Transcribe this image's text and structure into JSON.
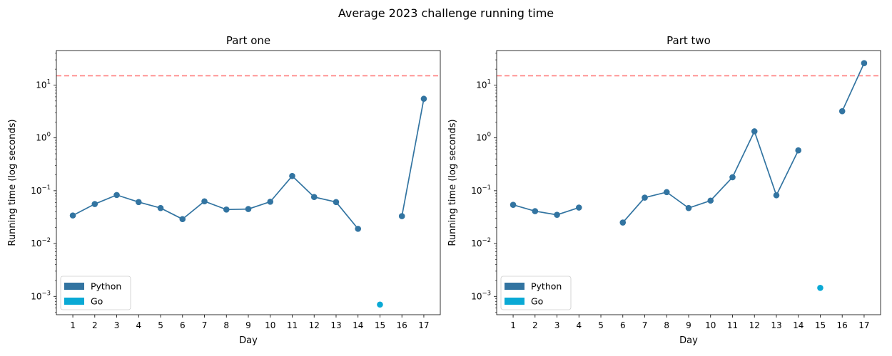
{
  "figure": {
    "title": "Average 2023 challenge running time"
  },
  "colors": {
    "python": "#3274a1",
    "go": "#0aa9d5",
    "threshold": "#ff7f7f"
  },
  "chart_data": [
    {
      "type": "line",
      "title": "Part one",
      "xlabel": "Day",
      "ylabel": "Running time (log seconds)",
      "yscale": "log",
      "ylim": [
        0.00045,
        45
      ],
      "x": [
        1,
        2,
        3,
        4,
        5,
        6,
        7,
        8,
        9,
        10,
        11,
        12,
        13,
        14,
        15,
        16,
        17
      ],
      "x_tick_labels": [
        "1",
        "2",
        "3",
        "4",
        "5",
        "6",
        "7",
        "8",
        "9",
        "10",
        "11",
        "12",
        "13",
        "14",
        "15",
        "16",
        "17"
      ],
      "y_ticks": [
        0.001,
        0.01,
        0.1,
        1,
        10
      ],
      "y_tick_labels": [
        {
          "base": "10",
          "exp": "−3"
        },
        {
          "base": "10",
          "exp": "−2"
        },
        {
          "base": "10",
          "exp": "−1"
        },
        {
          "base": "10",
          "exp": "0"
        },
        {
          "base": "10",
          "exp": "1"
        }
      ],
      "threshold": 15,
      "series": [
        {
          "name": "Python",
          "color": "#3274a1",
          "connect": true,
          "values": [
            0.034,
            0.056,
            0.083,
            0.061,
            0.047,
            0.029,
            0.063,
            0.044,
            0.045,
            0.062,
            0.19,
            0.076,
            0.061,
            0.019,
            null,
            0.033,
            5.5
          ]
        },
        {
          "name": "Go",
          "color": "#0aa9d5",
          "connect": false,
          "values": [
            null,
            null,
            null,
            null,
            null,
            null,
            null,
            null,
            null,
            null,
            null,
            null,
            null,
            null,
            0.0007,
            null,
            null
          ]
        }
      ],
      "legend": {
        "position": "lower-left",
        "entries": [
          "Python",
          "Go"
        ]
      },
      "grid": false
    },
    {
      "type": "line",
      "title": "Part two",
      "xlabel": "Day",
      "ylabel": "Running time (log seconds)",
      "yscale": "log",
      "ylim": [
        0.00045,
        45
      ],
      "x": [
        1,
        2,
        3,
        4,
        5,
        6,
        7,
        8,
        9,
        10,
        11,
        12,
        13,
        14,
        15,
        16,
        17
      ],
      "x_tick_labels": [
        "1",
        "2",
        "3",
        "4",
        "5",
        "6",
        "7",
        "8",
        "9",
        "10",
        "11",
        "12",
        "13",
        "14",
        "15",
        "16",
        "17"
      ],
      "y_ticks": [
        0.001,
        0.01,
        0.1,
        1,
        10
      ],
      "y_tick_labels": [
        {
          "base": "10",
          "exp": "−3"
        },
        {
          "base": "10",
          "exp": "−2"
        },
        {
          "base": "10",
          "exp": "−1"
        },
        {
          "base": "10",
          "exp": "0"
        },
        {
          "base": "10",
          "exp": "1"
        }
      ],
      "threshold": 15,
      "series": [
        {
          "name": "Python",
          "color": "#3274a1",
          "connect": true,
          "values": [
            0.054,
            0.041,
            0.035,
            0.048,
            null,
            0.025,
            0.074,
            0.094,
            0.047,
            0.065,
            0.18,
            1.33,
            0.082,
            0.58,
            null,
            3.2,
            26
          ]
        },
        {
          "name": "Go",
          "color": "#0aa9d5",
          "connect": false,
          "values": [
            null,
            null,
            null,
            null,
            null,
            null,
            null,
            null,
            null,
            null,
            null,
            null,
            null,
            null,
            0.00145,
            null,
            null
          ]
        }
      ],
      "legend": {
        "position": "lower-left",
        "entries": [
          "Python",
          "Go"
        ]
      },
      "grid": false
    }
  ]
}
